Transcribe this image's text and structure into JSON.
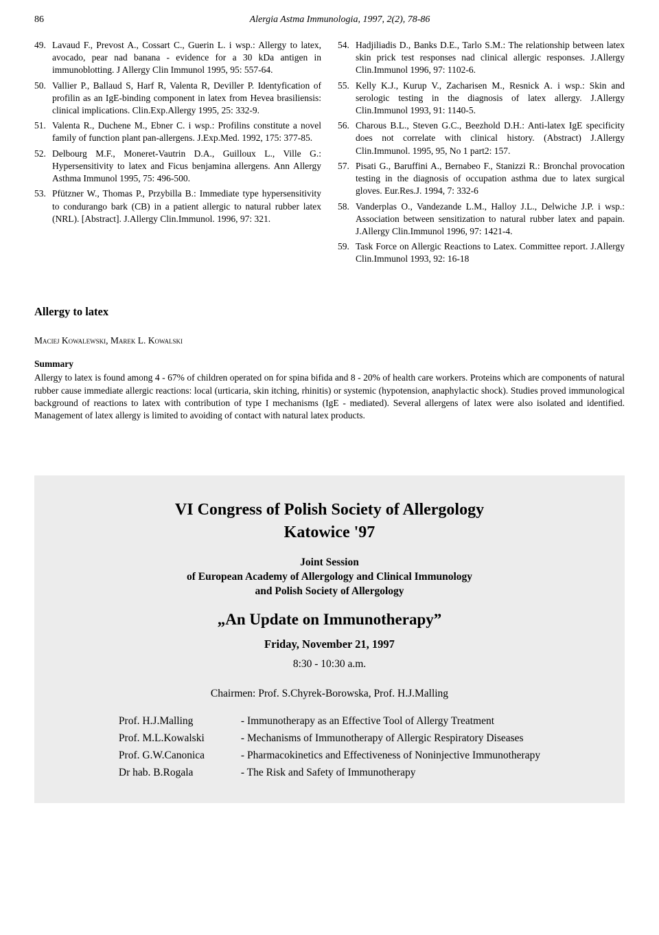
{
  "pageNumber": "86",
  "runningTitle": "Alergia Astma Immunologia, 1997, 2(2), 78-86",
  "refsLeft": [
    {
      "n": "49.",
      "t": "Lavaud F., Prevost A., Cossart C., Guerin L. i wsp.: Allergy to latex, avocado, pear nad banana - evidence for a 30 kDa antigen in immunoblotting. J Allergy Clin Immunol 1995, 95: 557-64."
    },
    {
      "n": "50.",
      "t": "Vallier P., Ballaud S, Harf R, Valenta R, Deviller P. Identyfication of profilin as an IgE-binding component in latex from Hevea brasiliensis: clinical implications. Clin.Exp.Allergy 1995, 25: 332-9."
    },
    {
      "n": "51.",
      "t": "Valenta R., Duchene M., Ebner C. i wsp.: Profilins constitute a novel family of function plant pan-allergens. J.Exp.Med. 1992, 175: 377-85."
    },
    {
      "n": "52.",
      "t": "Delbourg M.F., Moneret-Vautrin D.A., Guilloux L., Ville G.: Hypersensitivity to latex and Ficus benjamina allergens. Ann Allergy Asthma Immunol 1995, 75: 496-500."
    },
    {
      "n": "53.",
      "t": "Pfützner W., Thomas P., Przybilla B.: Immediate type hypersensitivity to condurango bark (CB) in a patient allergic to natural rubber latex (NRL). [Abstract]. J.Allergy Clin.Immunol. 1996, 97: 321."
    }
  ],
  "refsRight": [
    {
      "n": "54.",
      "t": "Hadjiliadis D., Banks D.E., Tarlo S.M.: The relationship between latex skin prick test responses nad clinical allergic responses. J.Allergy Clin.Immunol 1996, 97: 1102-6."
    },
    {
      "n": "55.",
      "t": "Kelly K.J., Kurup V., Zacharisen M., Resnick A. i wsp.: Skin and serologic testing in the diagnosis of latex allergy. J.Allergy Clin.Immunol 1993, 91: 1140-5."
    },
    {
      "n": "56.",
      "t": "Charous B.L., Steven G.C., Beezhold D.H.: Anti-latex IgE specificity does not correlate with clinical history. (Abstract) J.Allergy Clin.Immunol. 1995, 95, No 1 part2: 157."
    },
    {
      "n": "57.",
      "t": "Pisati G., Baruffini A., Bernabeo F., Stanizzi R.: Bronchal provocation testing in the diagnosis of occupation asthma due to latex surgical gloves. Eur.Res.J. 1994, 7: 332-6"
    },
    {
      "n": "58.",
      "t": "Vanderplas O., Vandezande L.M., Halloy J.L., Delwiche J.P. i wsp.: Association between sensitization to natural rubber latex and papain. J.Allergy Clin.Immunol 1996, 97: 1421-4."
    },
    {
      "n": "59.",
      "t": "Task Force on Allergic Reactions to Latex. Committee report. J.Allergy Clin.Immunol 1993, 92: 16-18"
    }
  ],
  "sectionTitle": "Allergy to latex",
  "authors": "Maciej Kowalewski, Marek L. Kowalski",
  "summaryLabel": "Summary",
  "summaryBody": "Allergy to latex is found among 4 - 67% of children operated on for spina bifida and 8 - 20% of health care workers. Proteins which are components of natural rubber cause immediate allergic reactions: local (urticaria, skin itching, rhinitis) or systemic (hypotension, anaphylactic shock). Studies proved immunological background of reactions to latex with contribution of type I mechanisms (IgE - mediated). Several allergens of latex were also isolated and identified. Management of latex allergy is limited to avoiding of contact with natural latex products.",
  "congress": {
    "title1": "VI Congress of Polish Society of Allergology",
    "title2": "Katowice '97",
    "sub1": "Joint Session",
    "sub2": "of European Academy of Allergology and Clinical Immunology",
    "sub3": "and Polish Society of Allergology",
    "sessionTitle": "„An Update on Immunotherapy”",
    "date": "Friday, November 21, 1997",
    "time": "8:30 - 10:30 a.m.",
    "chair": "Chairmen: Prof. S.Chyrek-Borowska, Prof. H.J.Malling",
    "rows": [
      {
        "s": "Prof. H.J.Malling",
        "t": "- Immunotherapy as an Effective Tool of Allergy Treatment"
      },
      {
        "s": "Prof. M.L.Kowalski",
        "t": "- Mechanisms of Immunotherapy of Allergic Respiratory Diseases"
      },
      {
        "s": "Prof. G.W.Canonica",
        "t": "- Pharmacokinetics and Effectiveness of Noninjective Immunotherapy"
      },
      {
        "s": "Dr hab. B.Rogala",
        "t": "- The Risk and Safety of Immunotherapy"
      }
    ]
  }
}
